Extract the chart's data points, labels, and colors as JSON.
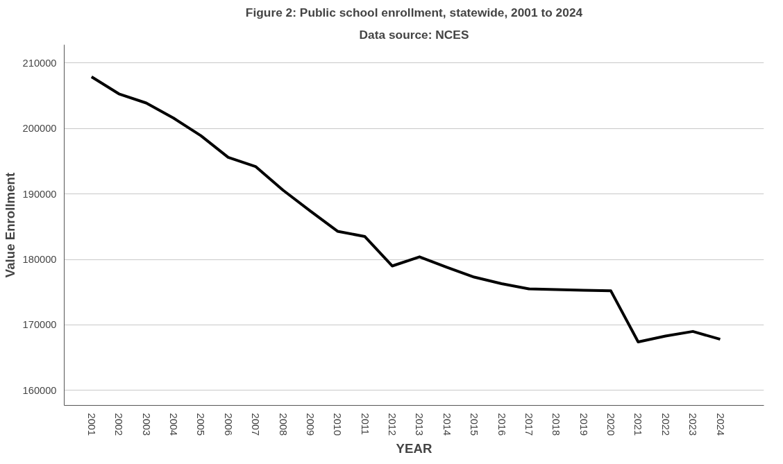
{
  "chart_data": {
    "type": "line",
    "title": "Figure 2: Public school enrollment, statewide, 2001 to 2024",
    "subtitle": "Data source: NCES",
    "xlabel": "YEAR",
    "ylabel": "Value Enrollment",
    "categories": [
      "2001",
      "2002",
      "2003",
      "2004",
      "2005",
      "2006",
      "2007",
      "2008",
      "2009",
      "2010",
      "2011",
      "2012",
      "2013",
      "2014",
      "2015",
      "2016",
      "2017",
      "2018",
      "2019",
      "2020",
      "2021",
      "2022",
      "2023",
      "2024"
    ],
    "series": [
      {
        "color": "#000000",
        "values": [
          207900,
          205300,
          203900,
          201600,
          198900,
          195600,
          194200,
          190600,
          187400,
          184300,
          183500,
          179000,
          180400,
          178800,
          177300,
          176300,
          175500,
          175400,
          175300,
          175200,
          167400,
          168300,
          169000,
          167800
        ]
      }
    ],
    "ylim": [
      157700,
      212800
    ],
    "yticks": [
      160000,
      170000,
      180000,
      190000,
      200000,
      210000
    ],
    "grid": "y",
    "marker": "none",
    "line_style": "solid"
  }
}
